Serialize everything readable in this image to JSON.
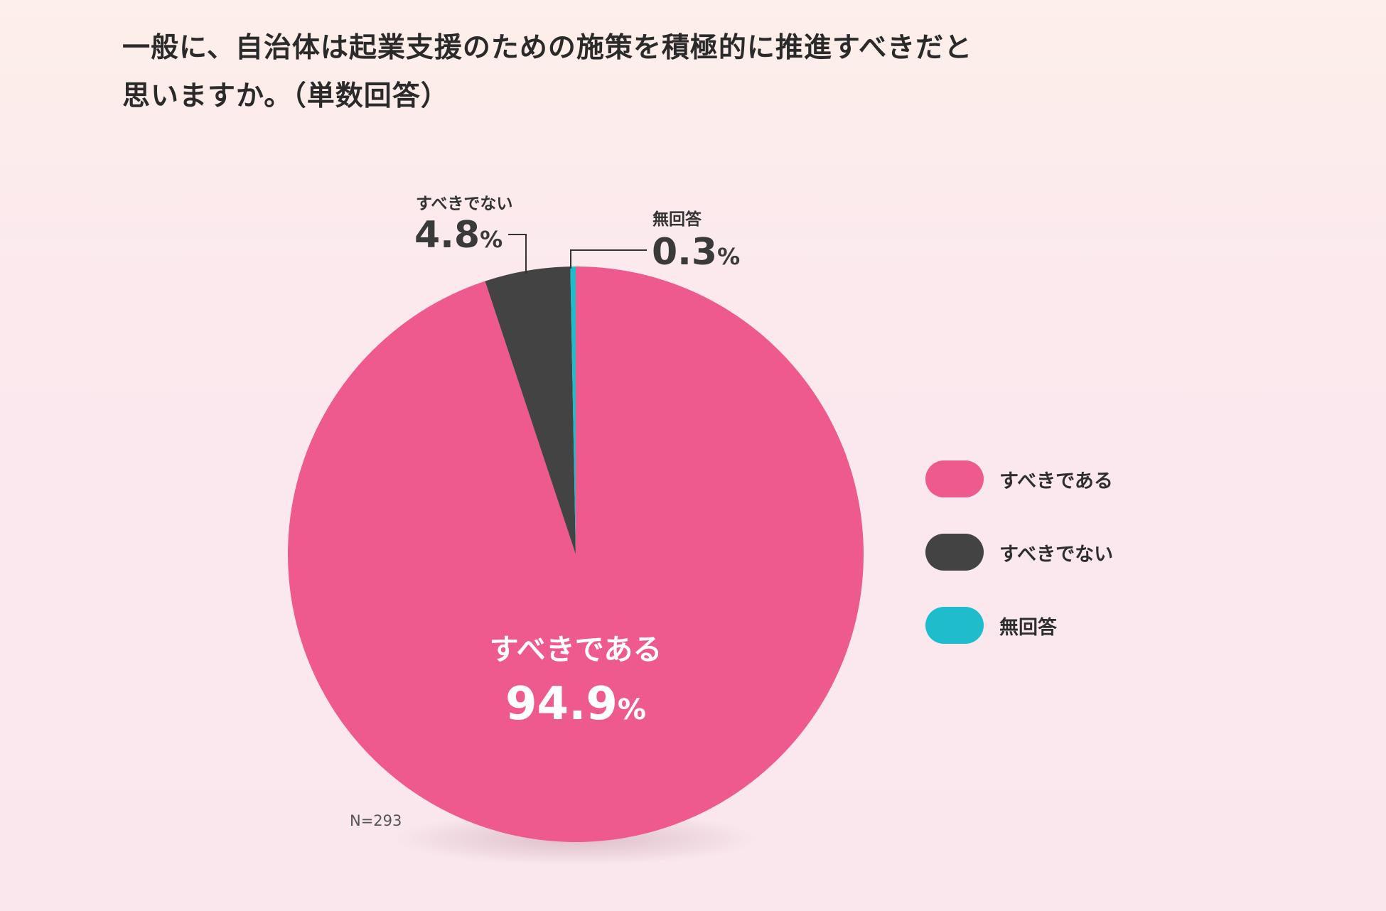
{
  "title_lines": [
    "一般に、自治体は起業支援のための施策を積極的に推進すべきだと",
    "思いますか。（単数回答）"
  ],
  "colors": {
    "pink": "#ee5a8e",
    "dark": "#434343",
    "teal": "#1fbccc"
  },
  "chart_data": {
    "type": "pie",
    "categories": [
      "すべきである",
      "すべきでない",
      "無回答"
    ],
    "values": [
      94.9,
      4.8,
      0.3
    ],
    "unit": "%",
    "note": "N=293"
  },
  "labels": {
    "yes": {
      "name": "すべきである",
      "num": "94.9",
      "unit": "%"
    },
    "no": {
      "name": "すべきでない",
      "num": "4.8",
      "unit": "%"
    },
    "na": {
      "name": "無回答",
      "num": "0.3",
      "unit": "%"
    }
  },
  "legend": [
    {
      "label": "すべきである",
      "color": "#ee5a8e"
    },
    {
      "label": "すべきでない",
      "color": "#434343"
    },
    {
      "label": "無回答",
      "color": "#1fbccc"
    }
  ]
}
